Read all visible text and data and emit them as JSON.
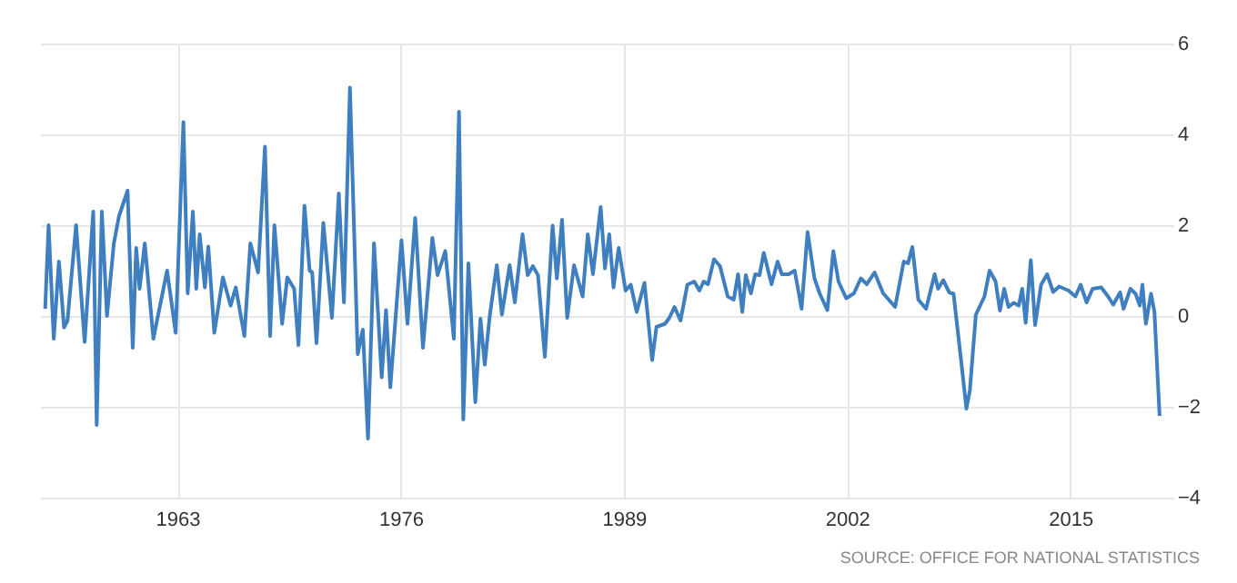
{
  "chart_data": {
    "type": "line",
    "x": [
      1955.3,
      1955.5,
      1955.8,
      1956.1,
      1956.4,
      1956.6,
      1957.1,
      1957.6,
      1958.1,
      1958.3,
      1958.6,
      1958.9,
      1959.3,
      1959.6,
      1960.1,
      1960.4,
      1960.6,
      1960.8,
      1961.1,
      1961.6,
      1962.4,
      1962.9,
      1963.35,
      1963.6,
      1963.9,
      1964.1,
      1964.3,
      1964.6,
      1964.8,
      1965.15,
      1965.65,
      1966.1,
      1966.4,
      1966.9,
      1967.25,
      1967.7,
      1968.1,
      1968.4,
      1968.65,
      1969.1,
      1969.4,
      1969.8,
      1970.05,
      1970.4,
      1970.7,
      1970.85,
      1971.1,
      1971.5,
      1972.0,
      1972.4,
      1972.7,
      1973.05,
      1973.5,
      1973.8,
      1974.1,
      1974.45,
      1974.9,
      1975.15,
      1975.4,
      1976.05,
      1976.4,
      1976.85,
      1977.3,
      1977.85,
      1978.15,
      1978.6,
      1979.1,
      1979.4,
      1979.65,
      1979.95,
      1980.35,
      1980.65,
      1980.9,
      1981.2,
      1981.6,
      1981.9,
      1982.35,
      1982.65,
      1983.1,
      1983.4,
      1983.7,
      1984.0,
      1984.4,
      1984.85,
      1985.1,
      1985.4,
      1985.7,
      1986.1,
      1986.6,
      1986.9,
      1987.2,
      1987.65,
      1987.9,
      1988.15,
      1988.4,
      1988.7,
      1989.1,
      1989.4,
      1989.75,
      1990.2,
      1990.65,
      1990.9,
      1991.4,
      1991.65,
      1991.95,
      1992.3,
      1992.7,
      1993.1,
      1993.4,
      1993.65,
      1993.9,
      1994.25,
      1994.6,
      1995.05,
      1995.4,
      1995.65,
      1995.9,
      1996.1,
      1996.4,
      1996.65,
      1996.9,
      1997.15,
      1997.6,
      1997.95,
      1998.2,
      1998.6,
      1998.95,
      1999.35,
      1999.7,
      2000.1,
      2000.4,
      2000.85,
      2001.2,
      2001.5,
      2001.95,
      2002.4,
      2002.8,
      2003.15,
      2003.6,
      2004.1,
      2004.8,
      2005.3,
      2005.55,
      2005.8,
      2006.15,
      2006.6,
      2007.1,
      2007.3,
      2007.6,
      2007.95,
      2008.2,
      2008.6,
      2008.95,
      2009.15,
      2009.5,
      2010.0,
      2010.3,
      2010.65,
      2010.9,
      2011.15,
      2011.4,
      2011.7,
      2012.0,
      2012.2,
      2012.4,
      2012.7,
      2012.95,
      2013.3,
      2013.65,
      2014.0,
      2014.35,
      2014.9,
      2015.3,
      2015.6,
      2015.95,
      2016.3,
      2016.8,
      2017.2,
      2017.5,
      2017.9,
      2018.1,
      2018.5,
      2018.8,
      2019.05,
      2019.2,
      2019.4,
      2019.7,
      2019.9,
      2020.2
    ],
    "series": [
      {
        "color": "#3f7fbf",
        "values": [
          0.16,
          2.0,
          -0.5,
          1.2,
          -0.25,
          -0.1,
          2.0,
          -0.57,
          2.3,
          -2.4,
          2.3,
          0.0,
          1.6,
          2.2,
          2.76,
          -0.7,
          1.5,
          0.6,
          1.6,
          -0.5,
          1.0,
          -0.37,
          4.27,
          0.5,
          2.3,
          0.6,
          1.8,
          0.63,
          1.53,
          -0.37,
          0.85,
          0.23,
          0.63,
          -0.44,
          1.6,
          0.96,
          3.73,
          -0.44,
          2.0,
          -0.17,
          0.85,
          0.6,
          -0.64,
          2.43,
          1.0,
          0.96,
          -0.6,
          2.05,
          -0.04,
          2.7,
          0.3,
          5.03,
          -0.84,
          -0.3,
          -2.7,
          1.6,
          -1.35,
          0.13,
          -1.57,
          1.67,
          -0.17,
          2.16,
          -0.7,
          1.72,
          0.9,
          1.43,
          -0.5,
          4.5,
          -2.28,
          1.16,
          -1.9,
          -0.06,
          -1.07,
          0.03,
          1.12,
          0.03,
          1.12,
          0.3,
          1.8,
          0.9,
          1.1,
          0.9,
          -0.9,
          1.99,
          0.83,
          2.12,
          -0.04,
          1.12,
          0.43,
          1.8,
          0.92,
          2.4,
          1.05,
          1.8,
          0.63,
          1.5,
          0.56,
          0.69,
          0.09,
          0.73,
          -0.97,
          -0.24,
          -0.17,
          -0.04,
          0.2,
          -0.1,
          0.69,
          0.76,
          0.56,
          0.76,
          0.7,
          1.25,
          1.1,
          0.43,
          0.36,
          0.92,
          0.09,
          0.9,
          0.5,
          0.92,
          0.9,
          1.39,
          0.7,
          1.2,
          0.92,
          0.92,
          1.0,
          0.16,
          1.85,
          0.83,
          0.5,
          0.13,
          1.43,
          0.76,
          0.39,
          0.5,
          0.83,
          0.7,
          0.96,
          0.5,
          0.2,
          1.2,
          1.16,
          1.52,
          0.36,
          0.16,
          0.92,
          0.6,
          0.79,
          0.52,
          0.49,
          -0.84,
          -2.04,
          -1.64,
          0.03,
          0.43,
          1.0,
          0.76,
          0.12,
          0.6,
          0.2,
          0.29,
          0.23,
          0.6,
          -0.15,
          1.23,
          -0.2,
          0.69,
          0.92,
          0.53,
          0.65,
          0.56,
          0.43,
          0.69,
          0.3,
          0.6,
          0.63,
          0.43,
          0.25,
          0.52,
          0.16,
          0.6,
          0.49,
          0.23,
          0.69,
          -0.17,
          0.49,
          0.09,
          -2.2
        ]
      }
    ],
    "xlim": [
      1955,
      2021
    ],
    "xticks": [
      1963,
      1976,
      1989,
      2002,
      2015
    ],
    "ylim": [
      -4,
      6
    ],
    "yticks": [
      -4,
      -2,
      0,
      2,
      4,
      6
    ],
    "grid": true,
    "annotations": [
      "SOURCE: OFFICE FOR NATIONAL STATISTICS"
    ]
  }
}
